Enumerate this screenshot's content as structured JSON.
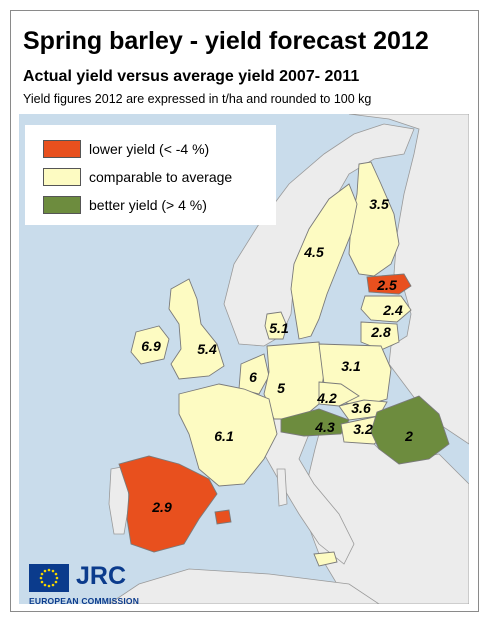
{
  "title": "Spring barley - yield forecast 2012",
  "subtitle": "Actual yield versus average yield 2007- 2011",
  "note": "Yield figures 2012 are expressed in t/ha and rounded to 100 kg",
  "legend": [
    {
      "label": "lower yield (< -4 %)",
      "color": "#e8501e"
    },
    {
      "label": "comparable to average",
      "color": "#fdfbc2"
    },
    {
      "label": "better yield (> 4 %)",
      "color": "#6d8c3e"
    }
  ],
  "colors": {
    "sea": "#c9dceb",
    "non_eu_land": "#ececec",
    "border": "#7a7a7a",
    "logo_blue": "#0b3b8c"
  },
  "countries": [
    {
      "name": "Finland",
      "value": "3.5",
      "category": "comparable"
    },
    {
      "name": "Sweden",
      "value": "4.5",
      "category": "comparable"
    },
    {
      "name": "Estonia",
      "value": "2.5",
      "category": "lower"
    },
    {
      "name": "Latvia",
      "value": "2.4",
      "category": "comparable"
    },
    {
      "name": "Lithuania",
      "value": "2.8",
      "category": "comparable"
    },
    {
      "name": "Denmark",
      "value": "5.1",
      "category": "comparable"
    },
    {
      "name": "Ireland",
      "value": "6.9",
      "category": "comparable"
    },
    {
      "name": "United Kingdom",
      "value": "5.4",
      "category": "comparable"
    },
    {
      "name": "Belgium",
      "value": "6",
      "category": "comparable"
    },
    {
      "name": "Germany",
      "value": "5",
      "category": "comparable"
    },
    {
      "name": "Poland",
      "value": "3.1",
      "category": "comparable"
    },
    {
      "name": "Czech Republic",
      "value": "4.2",
      "category": "comparable"
    },
    {
      "name": "Slovakia",
      "value": "3.6",
      "category": "comparable"
    },
    {
      "name": "Austria",
      "value": "4.3",
      "category": "better"
    },
    {
      "name": "Hungary",
      "value": "3.2",
      "category": "comparable"
    },
    {
      "name": "Romania",
      "value": "2",
      "category": "better"
    },
    {
      "name": "France",
      "value": "6.1",
      "category": "comparable"
    },
    {
      "name": "Spain",
      "value": "2.9",
      "category": "lower"
    }
  ],
  "logo": {
    "jrc": "JRC",
    "commission": "EUROPEAN COMMISSION"
  }
}
